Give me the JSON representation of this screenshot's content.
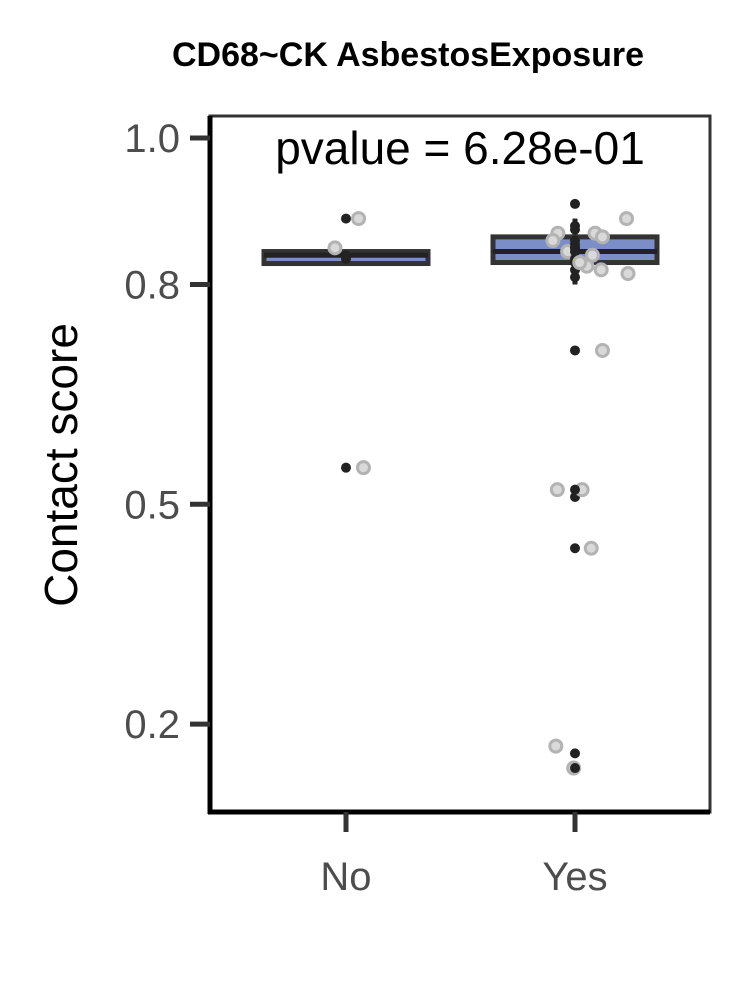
{
  "chart_data": {
    "type": "boxplot",
    "title": "CD68~CK AsbestosExposure",
    "annotation": "pvalue = 6.28e-01",
    "xlabel": "",
    "ylabel": "Contact score",
    "categories": [
      "No",
      "Yes"
    ],
    "ylim": [
      0.08,
      1.03
    ],
    "yticks": [
      0.2,
      0.5,
      0.8,
      1.0
    ],
    "ytick_labels": [
      "0.2",
      "0.5",
      "0.8",
      "1.0"
    ],
    "grid": false,
    "colors": {
      "box_fill": "#7b8ec8",
      "box_line": "#333333",
      "point_dark": "#222222",
      "point_light": "#b3b3b3"
    },
    "boxes": [
      {
        "category": "No",
        "whisker_low": 0.83,
        "q1": 0.83,
        "median": 0.84,
        "q3": 0.845,
        "whisker_high": 0.845
      },
      {
        "category": "Yes",
        "whisker_low": 0.8,
        "q1": 0.83,
        "median": 0.845,
        "q3": 0.865,
        "whisker_high": 0.89
      }
    ],
    "points": [
      {
        "category": "No",
        "values": [
          0.89,
          0.55,
          0.84,
          0.85,
          0.835,
          0.89,
          0.55
        ]
      },
      {
        "category": "Yes",
        "values": [
          0.91,
          0.87,
          0.86,
          0.845,
          0.83,
          0.82,
          0.81,
          0.825,
          0.85,
          0.865,
          0.835,
          0.84,
          0.855,
          0.87,
          0.88,
          0.89,
          0.875,
          0.86,
          0.845,
          0.815,
          0.82,
          0.83,
          0.85,
          0.71,
          0.71,
          0.52,
          0.51,
          0.52,
          0.52,
          0.44,
          0.44,
          0.17,
          0.16,
          0.14,
          0.14
        ]
      }
    ]
  }
}
